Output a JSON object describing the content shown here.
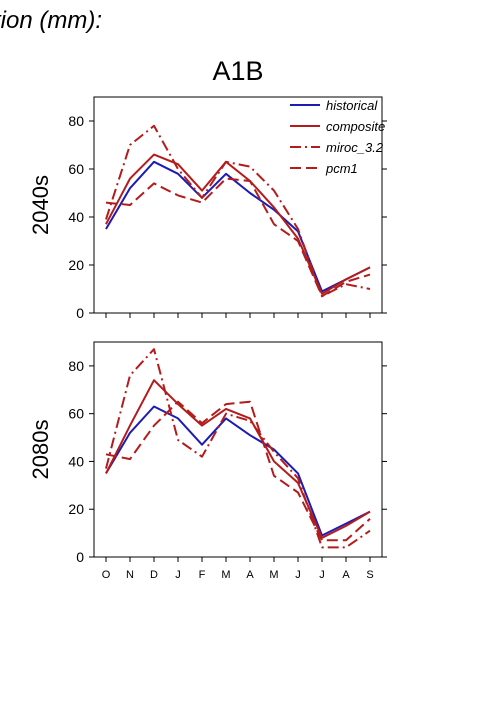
{
  "figure": {
    "header": "tion (mm):",
    "scenario": "A1B"
  },
  "colors": {
    "historical": "#1c1cb4",
    "model": "#b41c1c"
  },
  "chart_data": [
    {
      "type": "line",
      "panel_label": "2040s",
      "categories": [
        "O",
        "N",
        "D",
        "J",
        "F",
        "M",
        "A",
        "M",
        "J",
        "J",
        "A",
        "S"
      ],
      "ylim": [
        0,
        90
      ],
      "yticks": [
        0,
        20,
        40,
        60,
        80
      ],
      "legend_position": "top-right",
      "series": [
        {
          "name": "historical",
          "style": "solid",
          "color": "#1c1cb4",
          "values": [
            35,
            52,
            63,
            58,
            48,
            58,
            50,
            43,
            34,
            9,
            14,
            19
          ]
        },
        {
          "name": "composite",
          "style": "solid",
          "color": "#b41c1c",
          "values": [
            37,
            56,
            66,
            62,
            51,
            63,
            55,
            44,
            31,
            8,
            14,
            19
          ]
        },
        {
          "name": "miroc_3.2",
          "style": "dashdot",
          "color": "#b41c1c",
          "values": [
            39,
            70,
            78,
            60,
            48,
            63,
            61,
            51,
            35,
            7,
            12,
            10
          ]
        },
        {
          "name": "pcm1",
          "style": "dash",
          "color": "#b41c1c",
          "values": [
            46,
            45,
            54,
            49,
            46,
            56,
            55,
            37,
            30,
            7,
            13,
            16
          ]
        }
      ]
    },
    {
      "type": "line",
      "panel_label": "2080s",
      "categories": [
        "O",
        "N",
        "D",
        "J",
        "F",
        "M",
        "A",
        "M",
        "J",
        "J",
        "A",
        "S"
      ],
      "ylim": [
        0,
        90
      ],
      "yticks": [
        0,
        20,
        40,
        60,
        80
      ],
      "series": [
        {
          "name": "historical",
          "style": "solid",
          "color": "#1c1cb4",
          "values": [
            35,
            52,
            63,
            58,
            47,
            58,
            51,
            45,
            35,
            9,
            14,
            19
          ]
        },
        {
          "name": "composite",
          "style": "solid",
          "color": "#b41c1c",
          "values": [
            35,
            55,
            74,
            64,
            55,
            62,
            58,
            40,
            31,
            8,
            13,
            19
          ]
        },
        {
          "name": "miroc_3.2",
          "style": "dashdot",
          "color": "#b41c1c",
          "values": [
            37,
            76,
            87,
            49,
            42,
            60,
            57,
            44,
            33,
            4,
            4,
            11
          ]
        },
        {
          "name": "pcm1",
          "style": "dash",
          "color": "#b41c1c",
          "values": [
            43,
            41,
            55,
            65,
            56,
            64,
            65,
            34,
            27,
            7,
            7,
            16
          ]
        }
      ]
    }
  ]
}
